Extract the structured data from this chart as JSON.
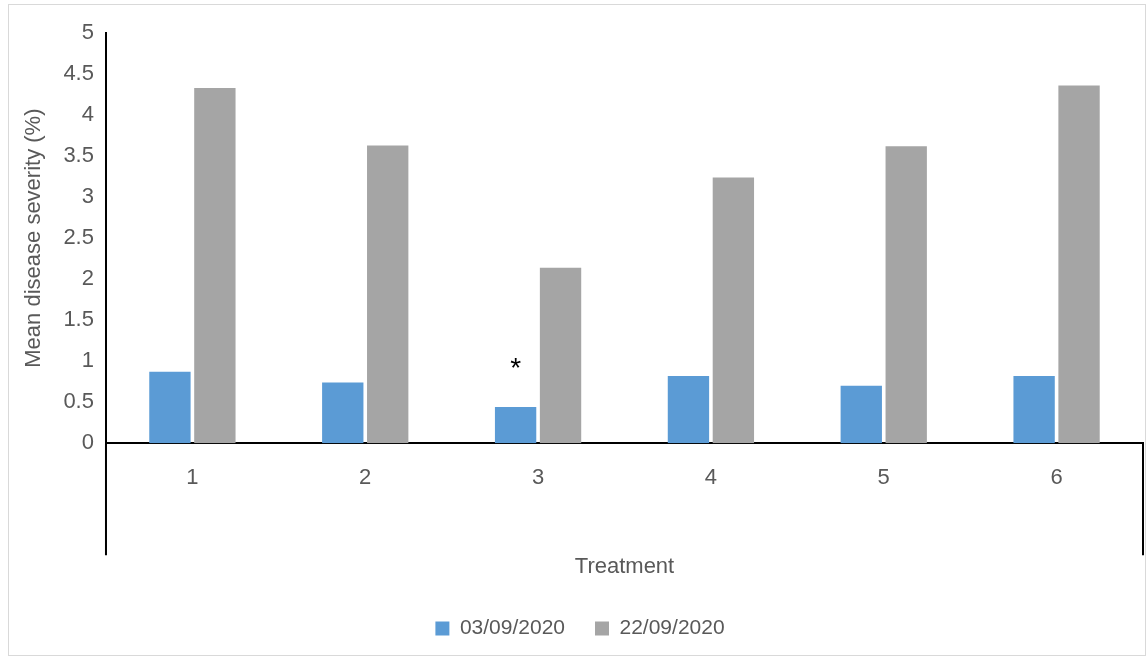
{
  "chart_data": {
    "type": "bar",
    "xlabel": "Treatment",
    "ylabel": "Mean disease severity (%)",
    "categories": [
      "1",
      "2",
      "3",
      "4",
      "5",
      "6"
    ],
    "series": [
      {
        "name": "03/09/2020",
        "color": "#5b9bd5",
        "values": [
          0.87,
          0.74,
          0.44,
          0.82,
          0.7,
          0.82
        ]
      },
      {
        "name": "22/09/2020",
        "color": "#a5a5a5",
        "values": [
          4.33,
          3.63,
          2.14,
          3.24,
          3.62,
          4.36
        ]
      }
    ],
    "ylim": [
      0,
      5
    ],
    "yticks": [
      0,
      0.5,
      1,
      1.5,
      2,
      2.5,
      3,
      3.5,
      4,
      4.5,
      5
    ],
    "grid": false,
    "legend": "bottom",
    "annotations": [
      {
        "text": "*",
        "x": "3",
        "y": 0.9
      }
    ]
  }
}
